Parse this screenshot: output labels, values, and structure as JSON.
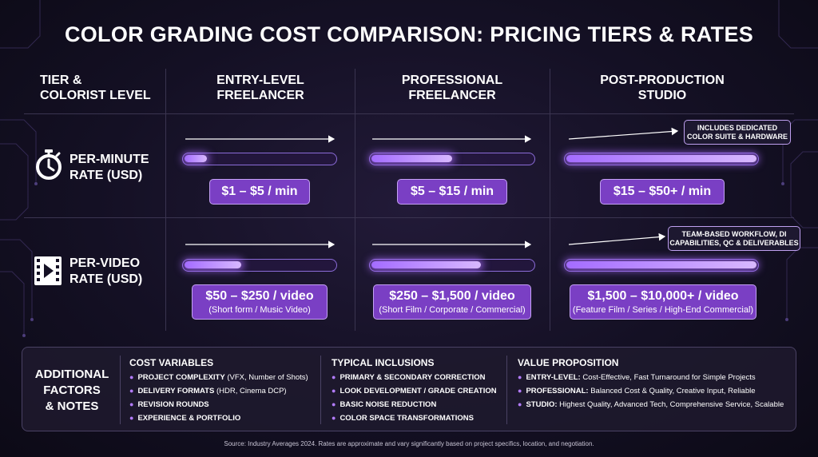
{
  "title": "COLOR GRADING COST COMPARISON: PRICING TIERS & RATES",
  "header": {
    "tier_label_line1": "TIER &",
    "tier_label_line2": "COLORIST LEVEL",
    "columns": [
      {
        "line1": "ENTRY-LEVEL",
        "line2": "FREELANCER"
      },
      {
        "line1": "PROFESSIONAL",
        "line2": "FREELANCER"
      },
      {
        "line1": "POST-PRODUCTION",
        "line2": "STUDIO"
      }
    ]
  },
  "rows": [
    {
      "icon": "stopwatch-icon",
      "label_line1": "PER-MINUTE",
      "label_line2": "RATE (USD)",
      "levels": [
        0.15,
        0.5,
        1.0
      ],
      "prices": [
        {
          "main": "$1 – $5 / min"
        },
        {
          "main": "$5 – $15 / min"
        },
        {
          "main": "$15 – $50+ / min"
        }
      ],
      "studio_note_line1": "INCLUDES DEDICATED",
      "studio_note_line2": "COLOR SUITE & HARDWARE"
    },
    {
      "icon": "video-file-icon",
      "label_line1": "PER-VIDEO",
      "label_line2": "RATE (USD)",
      "levels": [
        0.38,
        0.68,
        1.0
      ],
      "prices": [
        {
          "main": "$50 – $250 / video",
          "sub": "(Short form / Music Video)"
        },
        {
          "main": "$250 – $1,500 / video",
          "sub": "(Short Film / Corporate / Commercial)"
        },
        {
          "main": "$1,500 – $10,000+ / video",
          "sub": "(Feature Film / Series / High-End Commercial)"
        }
      ],
      "studio_note_line1": "TEAM-BASED WORKFLOW, DI",
      "studio_note_line2": "CAPABILITIES, QC & DELIVERABLES"
    }
  ],
  "factors": {
    "title_line1": "ADDITIONAL",
    "title_line2": "FACTORS",
    "title_line3": "& NOTES",
    "cost_variables": {
      "heading": "COST VARIABLES",
      "items": [
        {
          "bold": "PROJECT COMPLEXITY",
          "rest": " (VFX, Number of Shots)"
        },
        {
          "bold": "DELIVERY FORMATS",
          "rest": " (HDR, Cinema DCP)"
        },
        {
          "bold": "REVISION ROUNDS",
          "rest": ""
        },
        {
          "bold": "EXPERIENCE & PORTFOLIO",
          "rest": ""
        }
      ]
    },
    "typical_inclusions": {
      "heading": "TYPICAL INCLUSIONS",
      "items": [
        {
          "bold": "PRIMARY & SECONDARY CORRECTION",
          "rest": ""
        },
        {
          "bold": "LOOK DEVELOPMENT / GRADE CREATION",
          "rest": ""
        },
        {
          "bold": "BASIC NOISE REDUCTION",
          "rest": ""
        },
        {
          "bold": "COLOR SPACE TRANSFORMATIONS",
          "rest": ""
        }
      ]
    },
    "value_proposition": {
      "heading": "VALUE PROPOSITION",
      "items": [
        {
          "bold": "ENTRY-LEVEL:",
          "rest": " Cost-Effective, Fast Turnaround for Simple Projects"
        },
        {
          "bold": "PROFESSIONAL:",
          "rest": " Balanced Cost & Quality, Creative Input, Reliable"
        },
        {
          "bold": "STUDIO:",
          "rest": " Highest Quality, Advanced Tech, Comprehensive Service, Scalable"
        }
      ]
    }
  },
  "source": "Source: Industry Averages 2024. Rates are approximate and vary significantly based on project specifics, location, and negotiation.",
  "colors": {
    "accent": "#7a3fc4",
    "glow": "#b37cff",
    "background": "#141024"
  }
}
